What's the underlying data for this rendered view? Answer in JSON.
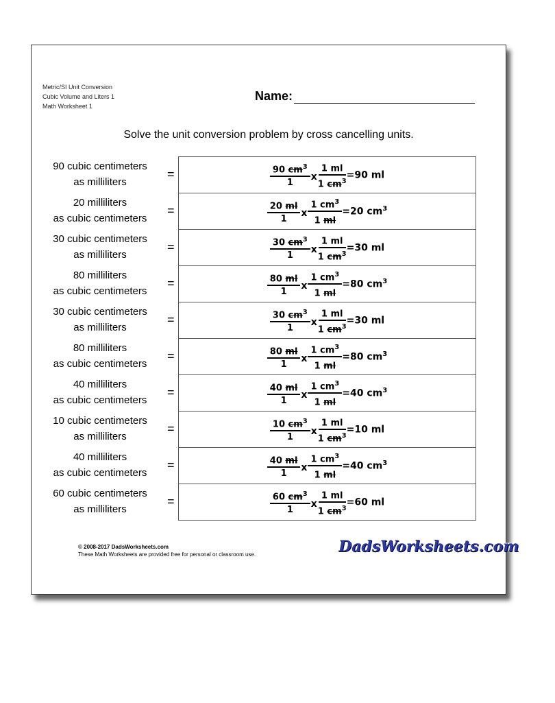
{
  "header": {
    "line1": "Metric/SI Unit Conversion",
    "line2": "Cubic Volume and Liters 1",
    "line3": "Math Worksheet 1",
    "name_label": "Name:"
  },
  "instructions": "Solve the unit conversion problem by cross cancelling units.",
  "equals": "=",
  "times": "x",
  "rows": [
    {
      "q1": "90 cubic centimeters",
      "q2": "as milliliters",
      "n1v": "90",
      "n1u": "cm",
      "n1s": "3",
      "d1": "1",
      "n2v": "1",
      "n2u": "ml",
      "n2s": "",
      "d2v": "1",
      "d2u": "cm",
      "d2s": "3",
      "rv": "=90",
      "ru": "ml",
      "rs": ""
    },
    {
      "q1": "20 milliliters",
      "q2": "as cubic centimeters",
      "n1v": "20",
      "n1u": "ml",
      "n1s": "",
      "d1": "1",
      "n2v": "1",
      "n2u": "cm",
      "n2s": "3",
      "d2v": "1",
      "d2u": "ml",
      "d2s": "",
      "rv": "=20",
      "ru": "cm",
      "rs": "3"
    },
    {
      "q1": "30 cubic centimeters",
      "q2": "as milliliters",
      "n1v": "30",
      "n1u": "cm",
      "n1s": "3",
      "d1": "1",
      "n2v": "1",
      "n2u": "ml",
      "n2s": "",
      "d2v": "1",
      "d2u": "cm",
      "d2s": "3",
      "rv": "=30",
      "ru": "ml",
      "rs": ""
    },
    {
      "q1": "80 milliliters",
      "q2": "as cubic centimeters",
      "n1v": "80",
      "n1u": "ml",
      "n1s": "",
      "d1": "1",
      "n2v": "1",
      "n2u": "cm",
      "n2s": "3",
      "d2v": "1",
      "d2u": "ml",
      "d2s": "",
      "rv": "=80",
      "ru": "cm",
      "rs": "3"
    },
    {
      "q1": "30 cubic centimeters",
      "q2": "as milliliters",
      "n1v": "30",
      "n1u": "cm",
      "n1s": "3",
      "d1": "1",
      "n2v": "1",
      "n2u": "ml",
      "n2s": "",
      "d2v": "1",
      "d2u": "cm",
      "d2s": "3",
      "rv": "=30",
      "ru": "ml",
      "rs": ""
    },
    {
      "q1": "80 milliliters",
      "q2": "as cubic centimeters",
      "n1v": "80",
      "n1u": "ml",
      "n1s": "",
      "d1": "1",
      "n2v": "1",
      "n2u": "cm",
      "n2s": "3",
      "d2v": "1",
      "d2u": "ml",
      "d2s": "",
      "rv": "=80",
      "ru": "cm",
      "rs": "3"
    },
    {
      "q1": "40 milliliters",
      "q2": "as cubic centimeters",
      "n1v": "40",
      "n1u": "ml",
      "n1s": "",
      "d1": "1",
      "n2v": "1",
      "n2u": "cm",
      "n2s": "3",
      "d2v": "1",
      "d2u": "ml",
      "d2s": "",
      "rv": "=40",
      "ru": "cm",
      "rs": "3"
    },
    {
      "q1": "10 cubic centimeters",
      "q2": "as milliliters",
      "n1v": "10",
      "n1u": "cm",
      "n1s": "3",
      "d1": "1",
      "n2v": "1",
      "n2u": "ml",
      "n2s": "",
      "d2v": "1",
      "d2u": "cm",
      "d2s": "3",
      "rv": "=10",
      "ru": "ml",
      "rs": ""
    },
    {
      "q1": "40 milliliters",
      "q2": "as cubic centimeters",
      "n1v": "40",
      "n1u": "ml",
      "n1s": "",
      "d1": "1",
      "n2v": "1",
      "n2u": "cm",
      "n2s": "3",
      "d2v": "1",
      "d2u": "ml",
      "d2s": "",
      "rv": "=40",
      "ru": "cm",
      "rs": "3"
    },
    {
      "q1": "60 cubic centimeters",
      "q2": "as milliliters",
      "n1v": "60",
      "n1u": "cm",
      "n1s": "3",
      "d1": "1",
      "n2v": "1",
      "n2u": "ml",
      "n2s": "",
      "d2v": "1",
      "d2u": "cm",
      "d2s": "3",
      "rv": "=60",
      "ru": "ml",
      "rs": ""
    }
  ],
  "footer": {
    "copyright": "© 2008-2017 DadsWorksheets.com",
    "note": "These Math Worksheets are provided free for personal or classroom use.",
    "logo": "DadsWorksheets.com"
  }
}
